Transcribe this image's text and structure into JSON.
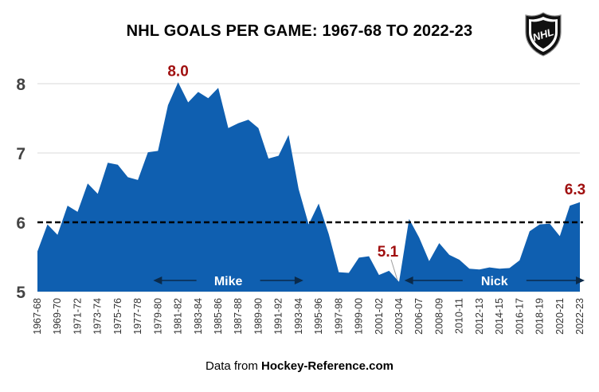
{
  "chart_data": {
    "type": "area",
    "title": "NHL GOALS PER GAME: 1967-68 TO 2022-23",
    "xlabel": "",
    "ylabel": "",
    "ylim": [
      5,
      8.3
    ],
    "yticks": [
      5,
      6,
      7,
      8
    ],
    "grid": true,
    "fill_color": "#0f5fb0",
    "reference_line": {
      "value": 6,
      "style": "dashed",
      "color": "#000000"
    },
    "categories": [
      "1967-68",
      "1968-69",
      "1969-70",
      "1970-71",
      "1971-72",
      "1972-73",
      "1973-74",
      "1974-75",
      "1975-76",
      "1976-77",
      "1977-78",
      "1978-79",
      "1979-80",
      "1980-81",
      "1981-82",
      "1982-83",
      "1983-84",
      "1984-85",
      "1985-86",
      "1986-87",
      "1987-88",
      "1988-89",
      "1989-90",
      "1990-91",
      "1991-92",
      "1992-93",
      "1993-94",
      "1994-95",
      "1995-96",
      "1996-97",
      "1997-98",
      "1998-99",
      "1999-00",
      "2000-01",
      "2001-02",
      "2002-03",
      "2003-04",
      "2005-06",
      "2006-07",
      "2007-08",
      "2008-09",
      "2009-10",
      "2010-11",
      "2011-12",
      "2012-13",
      "2013-14",
      "2014-15",
      "2015-16",
      "2016-17",
      "2017-18",
      "2018-19",
      "2019-20",
      "2020-21",
      "2021-22",
      "2022-23"
    ],
    "tick_labels": [
      "1967-68",
      "1969-70",
      "1971-72",
      "1973-74",
      "1975-76",
      "1977-78",
      "1979-80",
      "1981-82",
      "1983-84",
      "1985-86",
      "1987-88",
      "1989-90",
      "1991-92",
      "1993-94",
      "1995-96",
      "1997-98",
      "1999-00",
      "2001-02",
      "2003-04",
      "2006-07",
      "2008-09",
      "2010-11",
      "2012-13",
      "2014-15",
      "2016-17",
      "2018-19",
      "2020-21",
      "2022-23"
    ],
    "values": [
      5.58,
      5.97,
      5.82,
      6.24,
      6.15,
      6.56,
      6.41,
      6.86,
      6.83,
      6.65,
      6.61,
      7.01,
      7.03,
      7.69,
      8.02,
      7.73,
      7.88,
      7.79,
      7.94,
      7.36,
      7.43,
      7.48,
      7.36,
      6.92,
      6.96,
      7.26,
      6.48,
      5.97,
      6.27,
      5.83,
      5.28,
      5.27,
      5.49,
      5.51,
      5.24,
      5.3,
      5.14,
      6.05,
      5.78,
      5.44,
      5.7,
      5.53,
      5.46,
      5.33,
      5.32,
      5.35,
      5.33,
      5.34,
      5.45,
      5.87,
      5.97,
      5.98,
      5.8,
      6.24,
      6.29
    ],
    "annotations": [
      {
        "text": "8.0",
        "category": "1981-82",
        "value": 8.02,
        "color": "#a01010"
      },
      {
        "text": "5.1",
        "category": "2003-04",
        "value": 5.14,
        "color": "#a01010"
      },
      {
        "text": "6.3",
        "category": "2022-23",
        "value": 6.29,
        "color": "#a01010"
      }
    ],
    "eras": [
      {
        "label": "Mike",
        "from": "1979-80",
        "to": "1993-94"
      },
      {
        "label": "Nick",
        "from": "2005-06",
        "to": "2022-23"
      }
    ]
  },
  "source": {
    "prefix": "Data from ",
    "name": "Hockey-Reference.com"
  },
  "logo": {
    "text": "NHL",
    "icon": "nhl-shield-icon"
  }
}
